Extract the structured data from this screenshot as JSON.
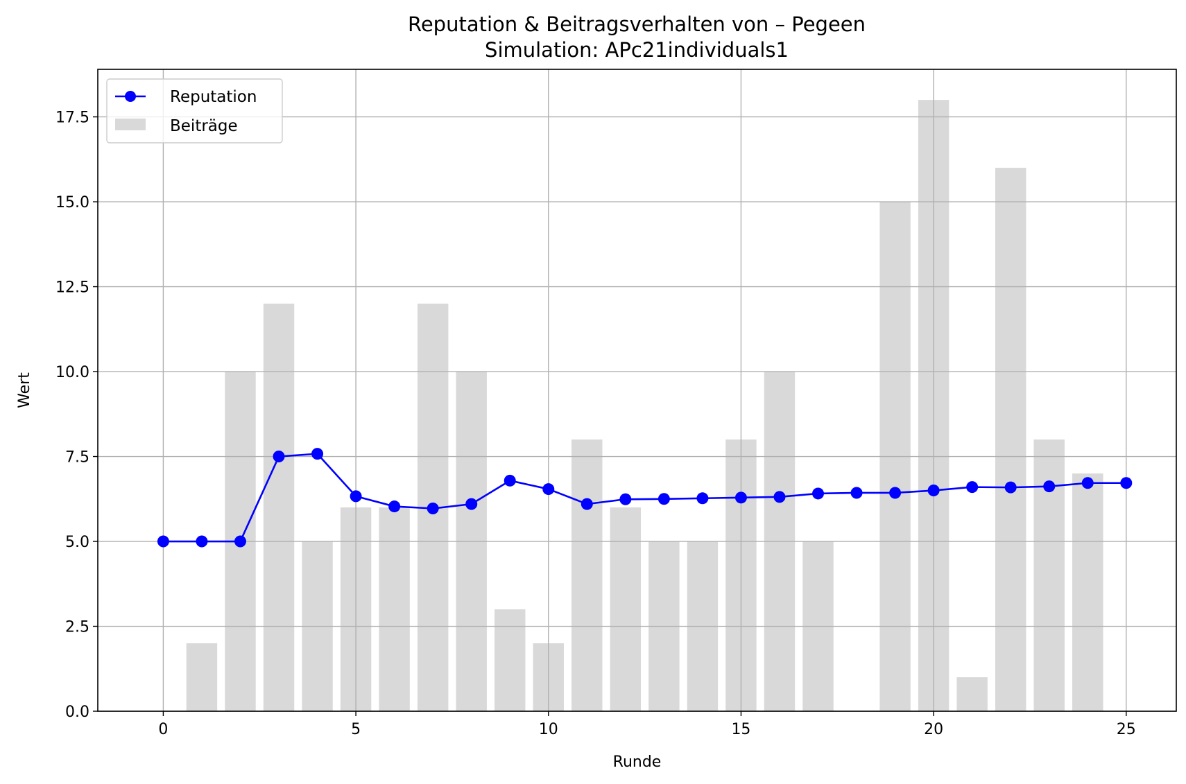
{
  "chart_data": {
    "type": "bar",
    "title": "Reputation & Beitragsverhalten von – Pegeen",
    "subtitle": "Simulation: APc21individuals1",
    "xlabel": "Runde",
    "ylabel": "Wert",
    "xlim": [
      -1.7,
      26.3
    ],
    "ylim": [
      0,
      18.9
    ],
    "xticks": [
      0,
      5,
      10,
      15,
      20,
      25
    ],
    "xtick_labels": [
      "0",
      "5",
      "10",
      "15",
      "20",
      "25"
    ],
    "yticks": [
      0,
      2.5,
      5,
      7.5,
      10,
      12.5,
      15,
      17.5
    ],
    "ytick_labels": [
      "0.0",
      "2.5",
      "5.0",
      "7.5",
      "10.0",
      "12.5",
      "15.0",
      "17.5"
    ],
    "grid": true,
    "legend_position": "upper-left",
    "x": [
      0,
      1,
      2,
      3,
      4,
      5,
      6,
      7,
      8,
      9,
      10,
      11,
      12,
      13,
      14,
      15,
      16,
      17,
      18,
      19,
      20,
      21,
      22,
      23,
      24,
      25
    ],
    "series": [
      {
        "name": "Reputation",
        "kind": "line",
        "color": "#0000ff",
        "marker": "circle",
        "values": [
          5.0,
          5.0,
          5.0,
          7.5,
          7.58,
          6.33,
          6.03,
          5.97,
          6.1,
          6.79,
          6.54,
          6.1,
          6.24,
          6.25,
          6.27,
          6.29,
          6.31,
          6.41,
          6.43,
          6.43,
          6.5,
          6.6,
          6.59,
          6.62,
          6.72,
          6.72
        ]
      },
      {
        "name": "Beiträge",
        "kind": "bar",
        "color": "#d9d9d9",
        "values": [
          0,
          2,
          10,
          12,
          5,
          6,
          6,
          12,
          10,
          3,
          2,
          8,
          6,
          5,
          5,
          8,
          10,
          5,
          0,
          15,
          18,
          1,
          16,
          8,
          7,
          0
        ]
      }
    ]
  }
}
